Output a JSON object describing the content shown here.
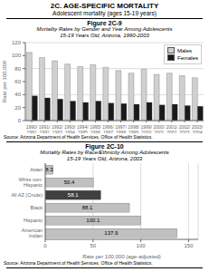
{
  "title": "2C. AGE-SPECIFIC MORTALITY",
  "subtitle": "Adolescent mortality (ages 15-19 years)",
  "chart_data": [
    {
      "type": "bar",
      "title": "Figure 2C-9",
      "subtitle": [
        "Mortality Rates by Gender and Year Among Adolescents",
        "15-19 Years Old, Arizona, 1990-2003"
      ],
      "categories": [
        "1990/\n1991",
        "1991/\n1992",
        "1992/\n1993",
        "1993/\n1994",
        "1994/\n1995",
        "1995/\n1996",
        "1996/\n1997",
        "1997/\n1998",
        "1998/\n1999",
        "1999/\n2000",
        "2000/\n2001",
        "2001/\n2002",
        "2002/\n2003",
        "2003/\n2004"
      ],
      "series": [
        {
          "name": "Males",
          "color": "#d0d0d0",
          "values": [
            105,
            97,
            92,
            87,
            83,
            86,
            82,
            77,
            73,
            79,
            71,
            73,
            69,
            66
          ]
        },
        {
          "name": "Females",
          "color": "#1a1a1a",
          "values": [
            38,
            35,
            33,
            30,
            28,
            30,
            27,
            26,
            25,
            28,
            24,
            25,
            23,
            22
          ]
        }
      ],
      "ylabel": "Rate per 100,000",
      "ylim": [
        0,
        120
      ],
      "yticks": [
        0,
        20,
        40,
        60,
        80,
        100,
        120
      ],
      "grid": true,
      "legend": "upper right",
      "annotations": [
        "Source: Arizona Department of Health Services, Office of Health Statistics."
      ]
    },
    {
      "type": "bar",
      "orientation": "horizontal",
      "title": "Figure 2C-10",
      "subtitle": [
        "Mortality Rates by Race/Ethnicity Among Adolescents",
        "15-19 Years Old, Arizona, 2003"
      ],
      "categories": [
        "American\nIndian",
        "Hispanic",
        "Black",
        "All AZ (Crude)",
        "White non-\nHispanic",
        "Asian"
      ],
      "values": [
        137.9,
        100.1,
        88.1,
        58.1,
        50.4,
        8.3
      ],
      "colors": [
        "#c0c0c0",
        "#c0c0c0",
        "#c0c0c0",
        "#404040",
        "#c0c0c0",
        "#c0c0c0"
      ],
      "xlabel": "Rate per 100,000 (age-adjusted)",
      "xlim": [
        0,
        160
      ],
      "xticks": [
        0,
        50,
        100,
        150
      ],
      "grid": true,
      "data_labels": true,
      "annotations": [
        "Source: Arizona Department of Health Services, Office of Health Statistics."
      ]
    }
  ]
}
